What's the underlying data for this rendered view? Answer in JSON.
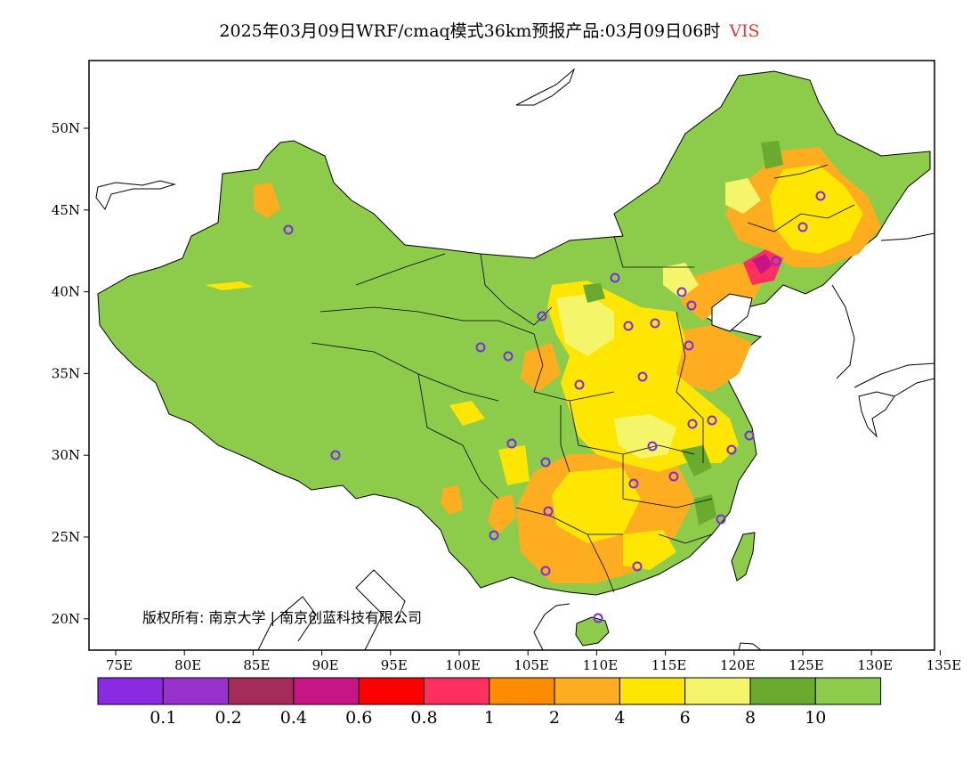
{
  "title": {
    "text": "2025年03月09日WRF/cmaq模式36km预报产品:03月09日06时",
    "variable": "VIS",
    "variable_color": "#e8353a"
  },
  "copyright": "版权所有: 南京大学 | 南京创蓝科技有限公司",
  "lat_labels": [
    "50N",
    "45N",
    "40N",
    "35N",
    "30N",
    "25N",
    "20N"
  ],
  "lon_labels": [
    "75E",
    "80E",
    "85E",
    "90E",
    "95E",
    "100E",
    "105E",
    "110E",
    "115E",
    "120E",
    "125E",
    "130E",
    "135E"
  ],
  "colorbar": {
    "colors": [
      "#8a2be2",
      "#9932cc",
      "#a52a5a",
      "#c71585",
      "#ff0000",
      "#ff3060",
      "#ff8c00",
      "#ffad20",
      "#ffe600",
      "#f5f56a",
      "#6aaa2e",
      "#8ccc4a"
    ],
    "tick_labels": [
      "0.1",
      "0.2",
      "0.4",
      "0.6",
      "0.8",
      "1",
      "2",
      "4",
      "6",
      "8",
      "10"
    ]
  },
  "map_colors": {
    "land_default": "#8ccc4a",
    "ocean": "#ffffff",
    "border": "#000000",
    "station_marker": "#7b2be2"
  }
}
